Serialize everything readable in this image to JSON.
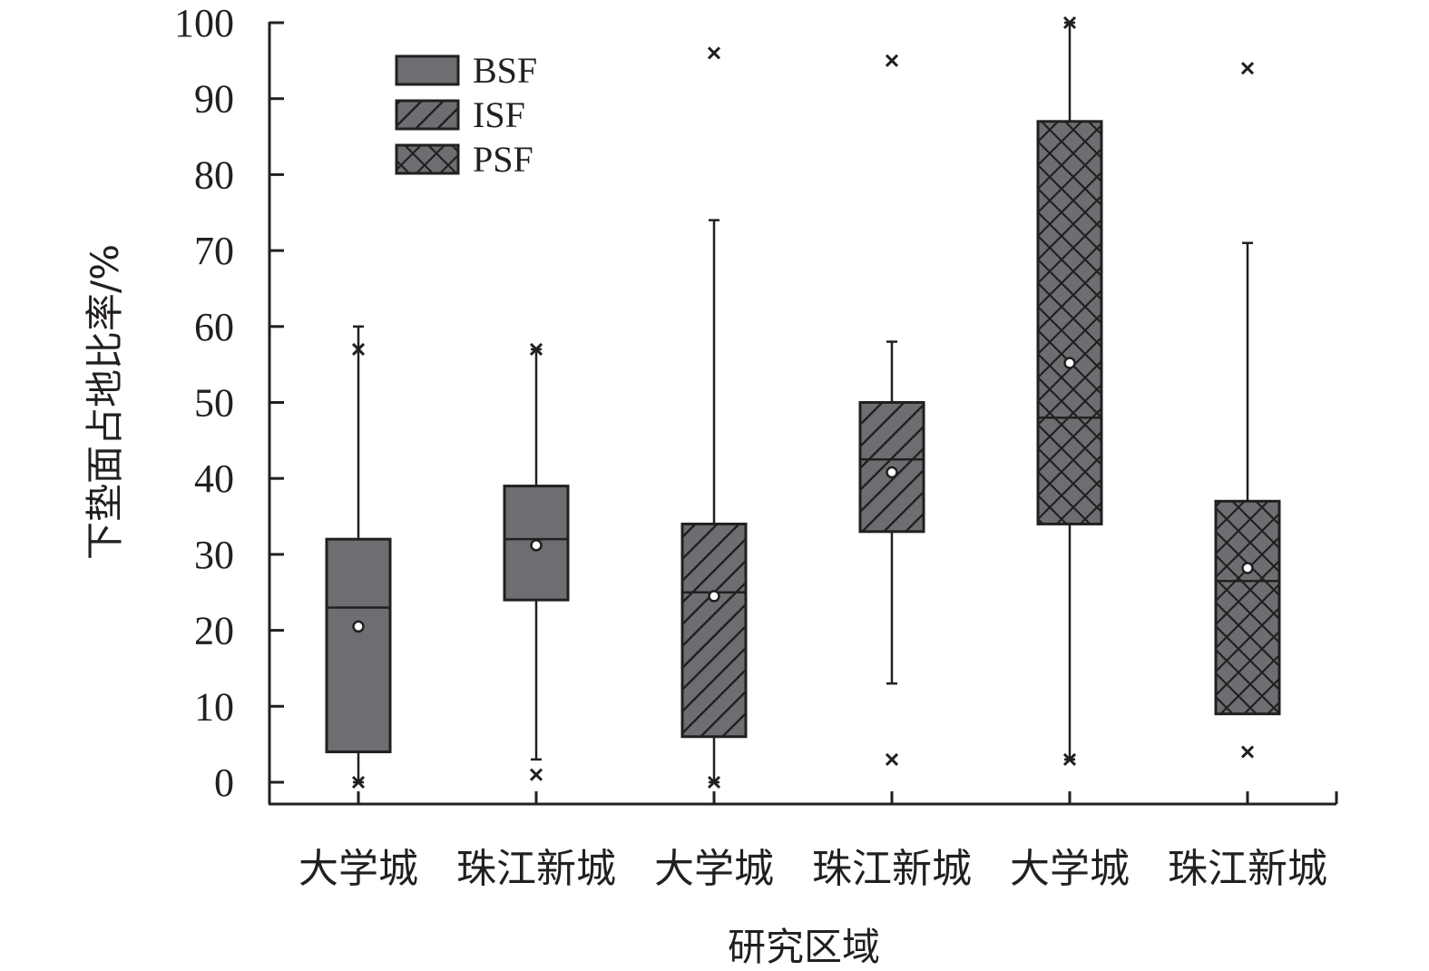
{
  "chart_data": {
    "type": "box",
    "ylabel": "下垫面占地比率/%",
    "xlabel": "研究区域",
    "ylim": [
      0,
      100
    ],
    "yticks": [
      0,
      10,
      20,
      30,
      40,
      50,
      60,
      70,
      80,
      90,
      100
    ],
    "categories": [
      "大学城",
      "珠江新城",
      "大学城",
      "珠江新城",
      "大学城",
      "珠江新城"
    ],
    "legend": {
      "position": "top-left",
      "items": [
        {
          "name": "BSF",
          "pattern": "solid"
        },
        {
          "name": "ISF",
          "pattern": "diagonal"
        },
        {
          "name": "PSF",
          "pattern": "crosshatch"
        }
      ]
    },
    "boxes": [
      {
        "category": "大学城",
        "series": "BSF",
        "pattern": "solid",
        "whisker_low": 0,
        "q1": 4,
        "median": 23,
        "q3": 32,
        "whisker_high": 60,
        "mean": 20.5,
        "outliers": [
          0,
          57
        ]
      },
      {
        "category": "珠江新城",
        "series": "BSF",
        "pattern": "solid",
        "whisker_low": 3,
        "q1": 24,
        "median": 32,
        "q3": 39,
        "whisker_high": 57,
        "mean": 31.2,
        "outliers": [
          1,
          57
        ]
      },
      {
        "category": "大学城",
        "series": "ISF",
        "pattern": "diagonal",
        "whisker_low": 0,
        "q1": 6,
        "median": 25,
        "q3": 34,
        "whisker_high": 74,
        "mean": 24.5,
        "outliers": [
          0,
          96
        ]
      },
      {
        "category": "珠江新城",
        "series": "ISF",
        "pattern": "diagonal",
        "whisker_low": 13,
        "q1": 33,
        "median": 42.5,
        "q3": 50,
        "whisker_high": 58,
        "mean": 40.8,
        "outliers": [
          3,
          95
        ]
      },
      {
        "category": "大学城",
        "series": "PSF",
        "pattern": "crosshatch",
        "whisker_low": 3,
        "q1": 34,
        "median": 48,
        "q3": 87,
        "whisker_high": 100,
        "mean": 55.2,
        "outliers": [
          3,
          100
        ]
      },
      {
        "category": "珠江新城",
        "series": "PSF",
        "pattern": "crosshatch",
        "whisker_low": 9,
        "q1": 9,
        "median": 26.5,
        "q3": 37,
        "whisker_high": 71,
        "mean": 28.2,
        "outliers": [
          4,
          94
        ]
      }
    ],
    "colors": {
      "box_fill": "#6d6e71",
      "stroke": "#231f20",
      "mean_marker": "#ffffff"
    }
  }
}
